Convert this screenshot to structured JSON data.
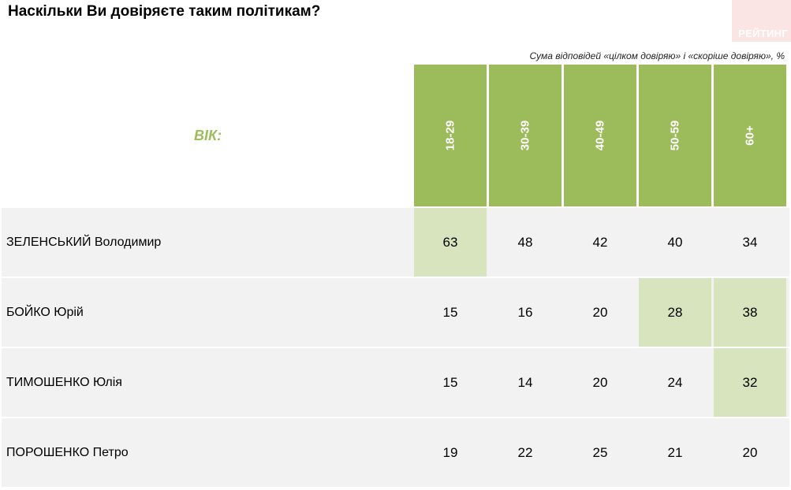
{
  "title": "Наскільки Ви довіряєте таким політикам?",
  "logo": {
    "text": "РЕЙТИНГ"
  },
  "note": "Сума відповідей «цілком довіряю» і «скоріше довіряю», %",
  "header_label": "ВІК:",
  "colors": {
    "header_green": "#9cbb5a",
    "highlight": "#d7e4bd",
    "row_bg": "#f2f2f2"
  },
  "chart_data": {
    "type": "table",
    "title": "Наскільки Ви довіряєте таким політикам?",
    "subtitle": "Сума відповідей «цілком довіряю» і «скоріше довіряю», %",
    "row_header": "ВІК:",
    "columns": [
      "18-29",
      "30-39",
      "40-49",
      "50-59",
      "60+"
    ],
    "rows": [
      {
        "name": "ЗЕЛЕНСЬКИЙ Володимир",
        "values": [
          "63",
          "48",
          "42",
          "40",
          "34"
        ],
        "highlight": [
          0
        ]
      },
      {
        "name": "БОЙКО Юрій",
        "values": [
          "15",
          "16",
          "20",
          "28",
          "38"
        ],
        "highlight": [
          3,
          4
        ]
      },
      {
        "name": "ТИМОШЕНКО Юлія",
        "values": [
          "15",
          "14",
          "20",
          "24",
          "32"
        ],
        "highlight": [
          4
        ]
      },
      {
        "name": "ПОРОШЕНКО Петро",
        "values": [
          "19",
          "22",
          "25",
          "21",
          "20"
        ],
        "highlight": []
      }
    ]
  }
}
